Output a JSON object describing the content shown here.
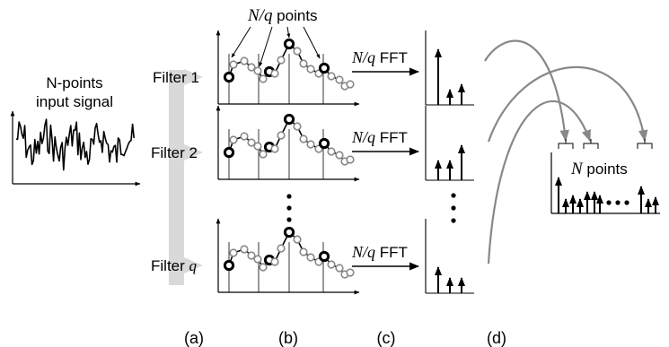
{
  "input_label": [
    "N-points",
    "input signal"
  ],
  "top_label": {
    "math": "N/q",
    "text": " points"
  },
  "filters": [
    {
      "text": "Filter ",
      "math": "1"
    },
    {
      "text": "Filter ",
      "math": "2"
    },
    {
      "text": "Filter ",
      "math": "q"
    }
  ],
  "fft_label": {
    "math": "N/q",
    "text": " FFT"
  },
  "output_label": {
    "math": "N",
    "text": " points"
  },
  "captions": [
    "(a)",
    "(b)",
    "(c)",
    "(d)"
  ],
  "colors": {
    "ink": "#000000",
    "gray": "#888888",
    "arrow_band": "#d9d9d9"
  }
}
